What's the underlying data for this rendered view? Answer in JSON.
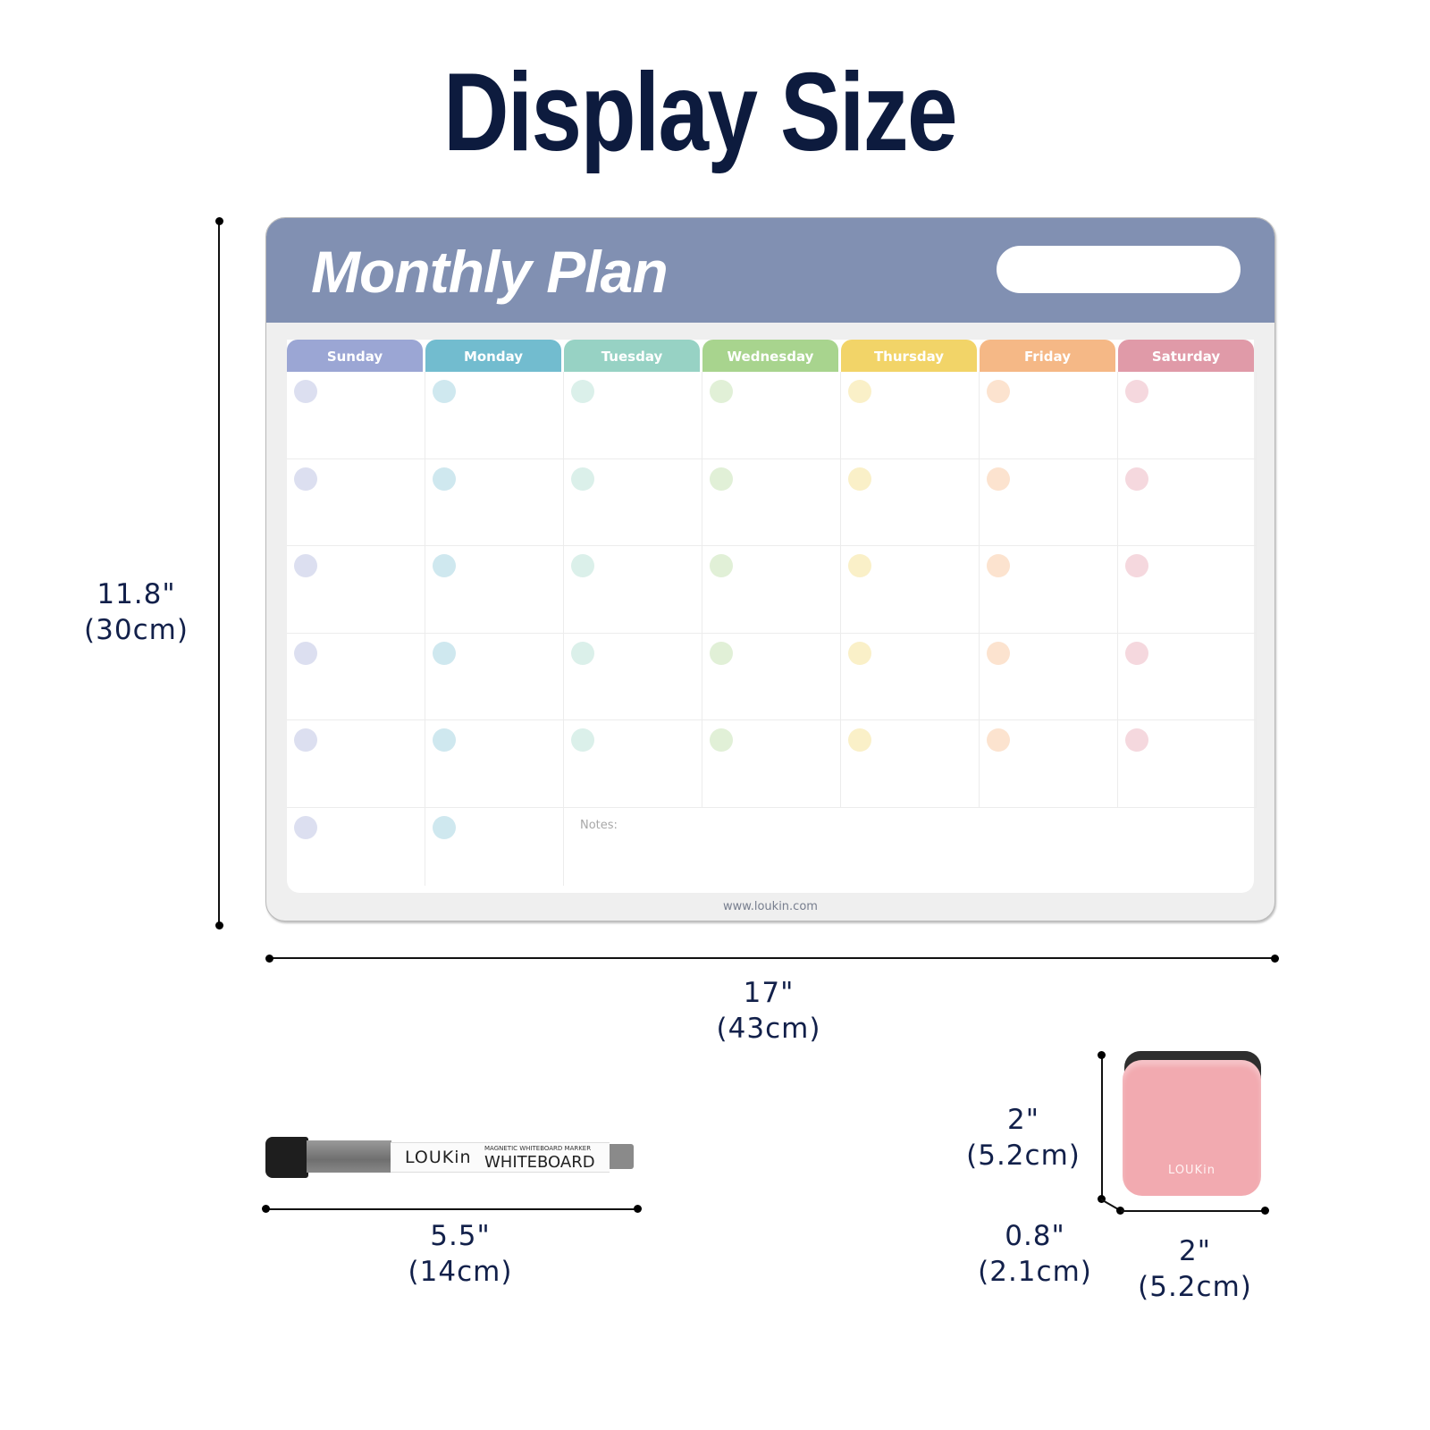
{
  "title": "Display Size",
  "board": {
    "title": "Monthly Plan",
    "days": [
      {
        "label": "Sunday",
        "color": "#9ba6d4",
        "dot": "#dcdff0"
      },
      {
        "label": "Monday",
        "color": "#72bccf",
        "dot": "#cfe8ef"
      },
      {
        "label": "Tuesday",
        "color": "#97d2c4",
        "dot": "#dbf0ea"
      },
      {
        "label": "Wednesday",
        "color": "#a8d48e",
        "dot": "#e1f0d7"
      },
      {
        "label": "Thursday",
        "color": "#f2d468",
        "dot": "#faf0c8"
      },
      {
        "label": "Friday",
        "color": "#f5b886",
        "dot": "#fce3cf"
      },
      {
        "label": "Saturday",
        "color": "#e09aa8",
        "dot": "#f5d8de"
      }
    ],
    "notes_label": "Notes:",
    "website": "www.loukin.com",
    "header_color": "#8190b2"
  },
  "dimensions": {
    "board_height": {
      "in": "11.8\"",
      "cm": "(30cm)"
    },
    "board_width": {
      "in": "17\"",
      "cm": "(43cm)"
    },
    "marker_length": {
      "in": "5.5\"",
      "cm": "(14cm)"
    },
    "eraser_height": {
      "in": "2\"",
      "cm": "(5.2cm)"
    },
    "eraser_depth": {
      "in": "0.8\"",
      "cm": "(2.1cm)"
    },
    "eraser_width": {
      "in": "2\"",
      "cm": "(5.2cm)"
    }
  },
  "marker": {
    "brand": "LOUKin",
    "subtitle": "MAGNETIC WHITEBOARD MARKER",
    "label": "WHITEBOARD"
  },
  "eraser": {
    "brand": "LOUKin",
    "color": "#f2aab0"
  }
}
